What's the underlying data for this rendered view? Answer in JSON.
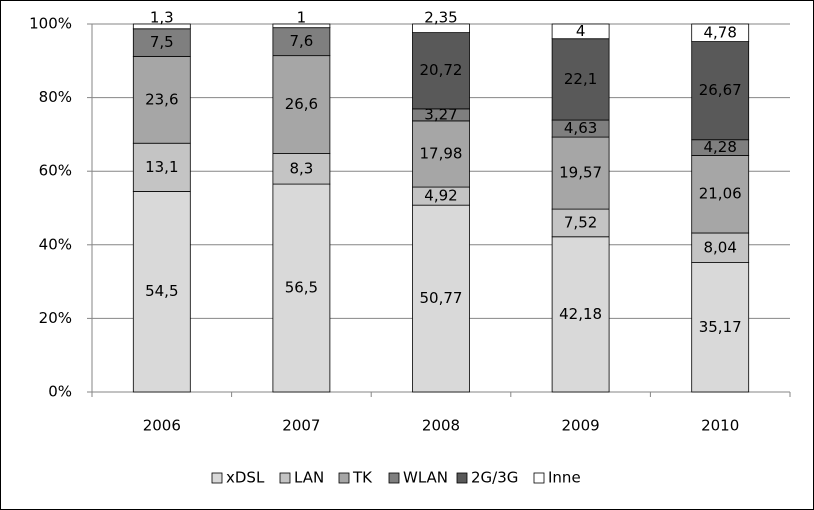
{
  "chart_data": {
    "type": "stacked_bar",
    "categories": [
      "2006",
      "2007",
      "2008",
      "2009",
      "2010"
    ],
    "series": [
      {
        "name": "xDSL",
        "color": "#d9d9d9",
        "values": [
          54.5,
          56.5,
          50.77,
          42.18,
          35.17
        ],
        "value_labels": [
          "54,5",
          "56,5",
          "50,77",
          "42,18",
          "35,17"
        ]
      },
      {
        "name": "LAN",
        "color": "#c4c4c4",
        "values": [
          13.1,
          8.3,
          4.92,
          7.52,
          8.04
        ],
        "value_labels": [
          "13,1",
          "8,3",
          "4,92",
          "7,52",
          "8,04"
        ]
      },
      {
        "name": "TK",
        "color": "#a6a6a6",
        "values": [
          23.6,
          26.6,
          17.98,
          19.57,
          21.06
        ],
        "value_labels": [
          "23,6",
          "26,6",
          "17,98",
          "19,57",
          "21,06"
        ]
      },
      {
        "name": "WLAN",
        "color": "#7f7f7f",
        "values": [
          7.5,
          7.6,
          3.27,
          4.63,
          4.28
        ],
        "value_labels": [
          "7,5",
          "7,6",
          "3,27",
          "4,63",
          "4,28"
        ]
      },
      {
        "name": "2G/3G",
        "color": "#595959",
        "values": [
          null,
          null,
          20.72,
          22.1,
          26.67
        ],
        "value_labels": [
          null,
          null,
          "20,72",
          "22,1",
          "26,67"
        ]
      },
      {
        "name": "Inne",
        "color": "#ffffff",
        "values": [
          1.3,
          1,
          2.35,
          4,
          4.78
        ],
        "value_labels": [
          "1,3",
          "1",
          "2,35",
          "4",
          "4,78"
        ]
      }
    ],
    "ylim": [
      0,
      100
    ],
    "yticks": [
      {
        "value": 0,
        "label": "0%"
      },
      {
        "value": 20,
        "label": "20%"
      },
      {
        "value": 40,
        "label": "40%"
      },
      {
        "value": 60,
        "label": "60%"
      },
      {
        "value": 80,
        "label": "80%"
      },
      {
        "value": 100,
        "label": "100%"
      }
    ],
    "grid": true,
    "legend": "bottom"
  }
}
